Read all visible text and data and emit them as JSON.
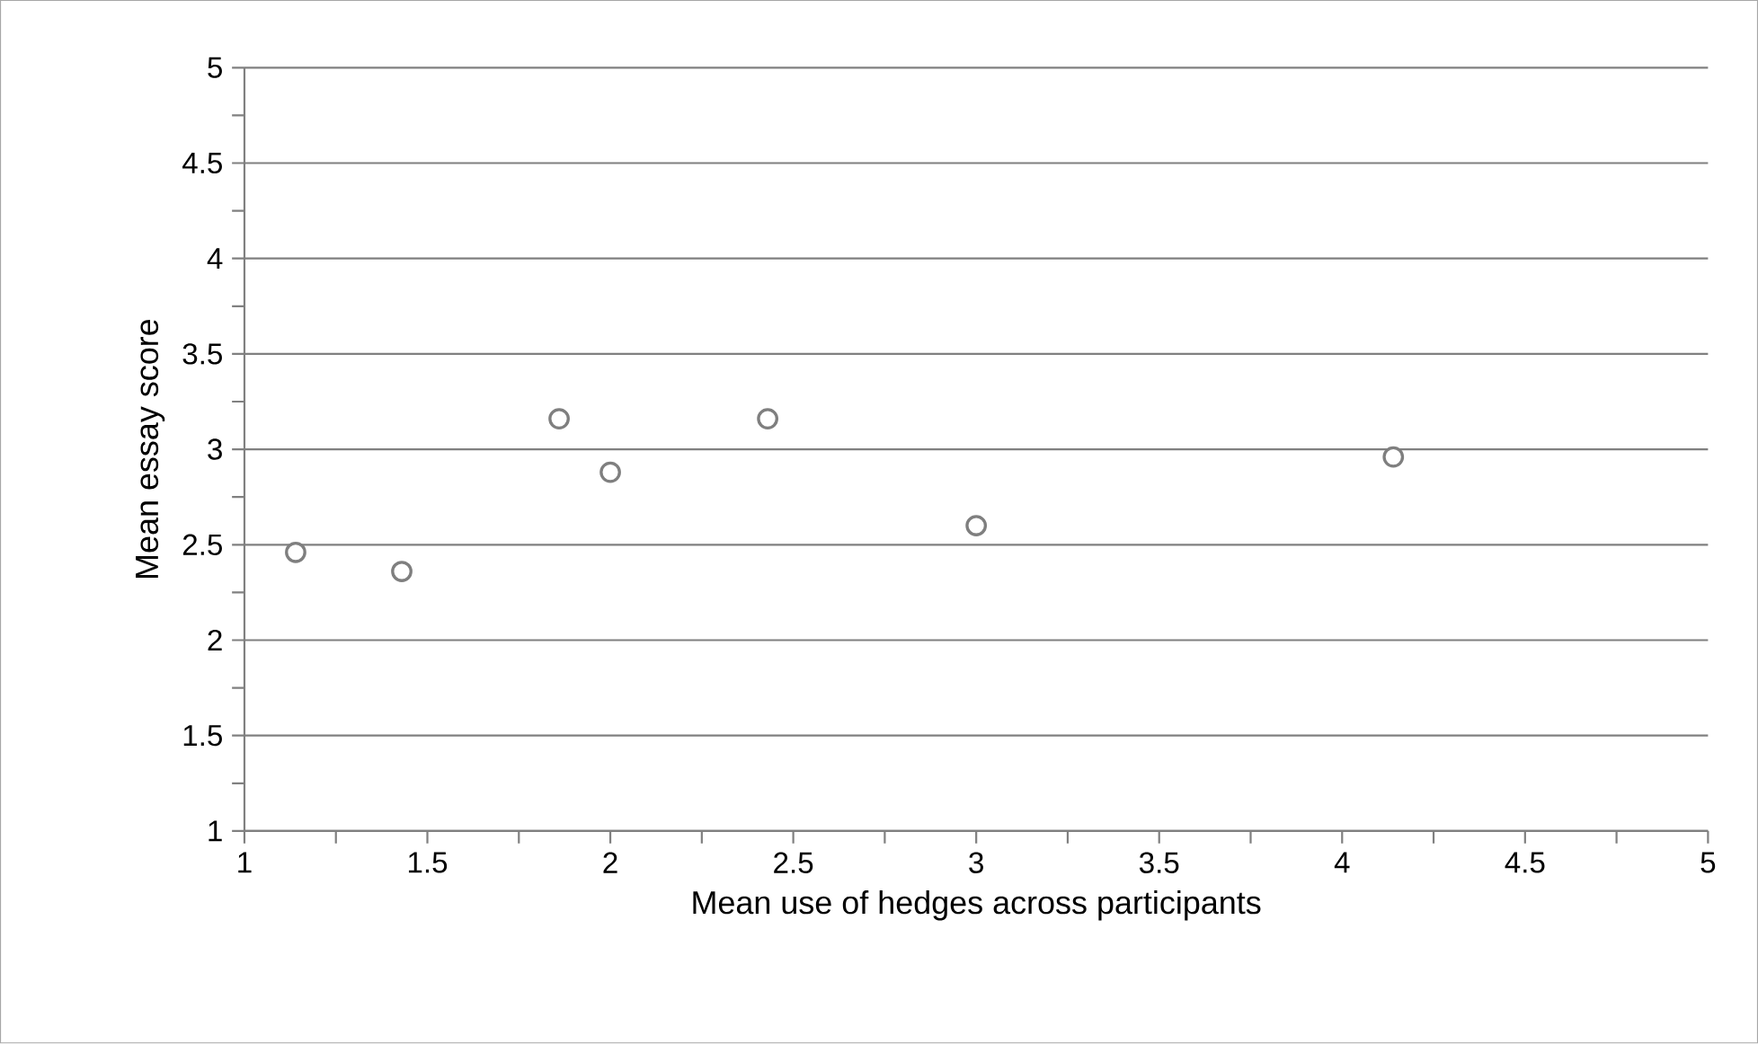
{
  "chart_data": {
    "type": "scatter",
    "xlabel": "Mean use of hedges across participants",
    "ylabel": "Mean essay score",
    "x": [
      1.14,
      1.43,
      1.86,
      2.0,
      2.43,
      3.0,
      4.14
    ],
    "values": [
      2.46,
      2.36,
      3.16,
      2.88,
      3.16,
      2.6,
      2.96
    ],
    "color": "#7f7f7f",
    "marker": "circle",
    "grid": "y",
    "xlim": [
      1,
      5
    ],
    "xticks": [
      1,
      1.5,
      2,
      2.5,
      3,
      3.5,
      4,
      4.5,
      5
    ],
    "ylim": [
      1,
      5
    ],
    "yticks": [
      1,
      1.5,
      2,
      2.5,
      3,
      3.5,
      4,
      4.5,
      5
    ]
  }
}
